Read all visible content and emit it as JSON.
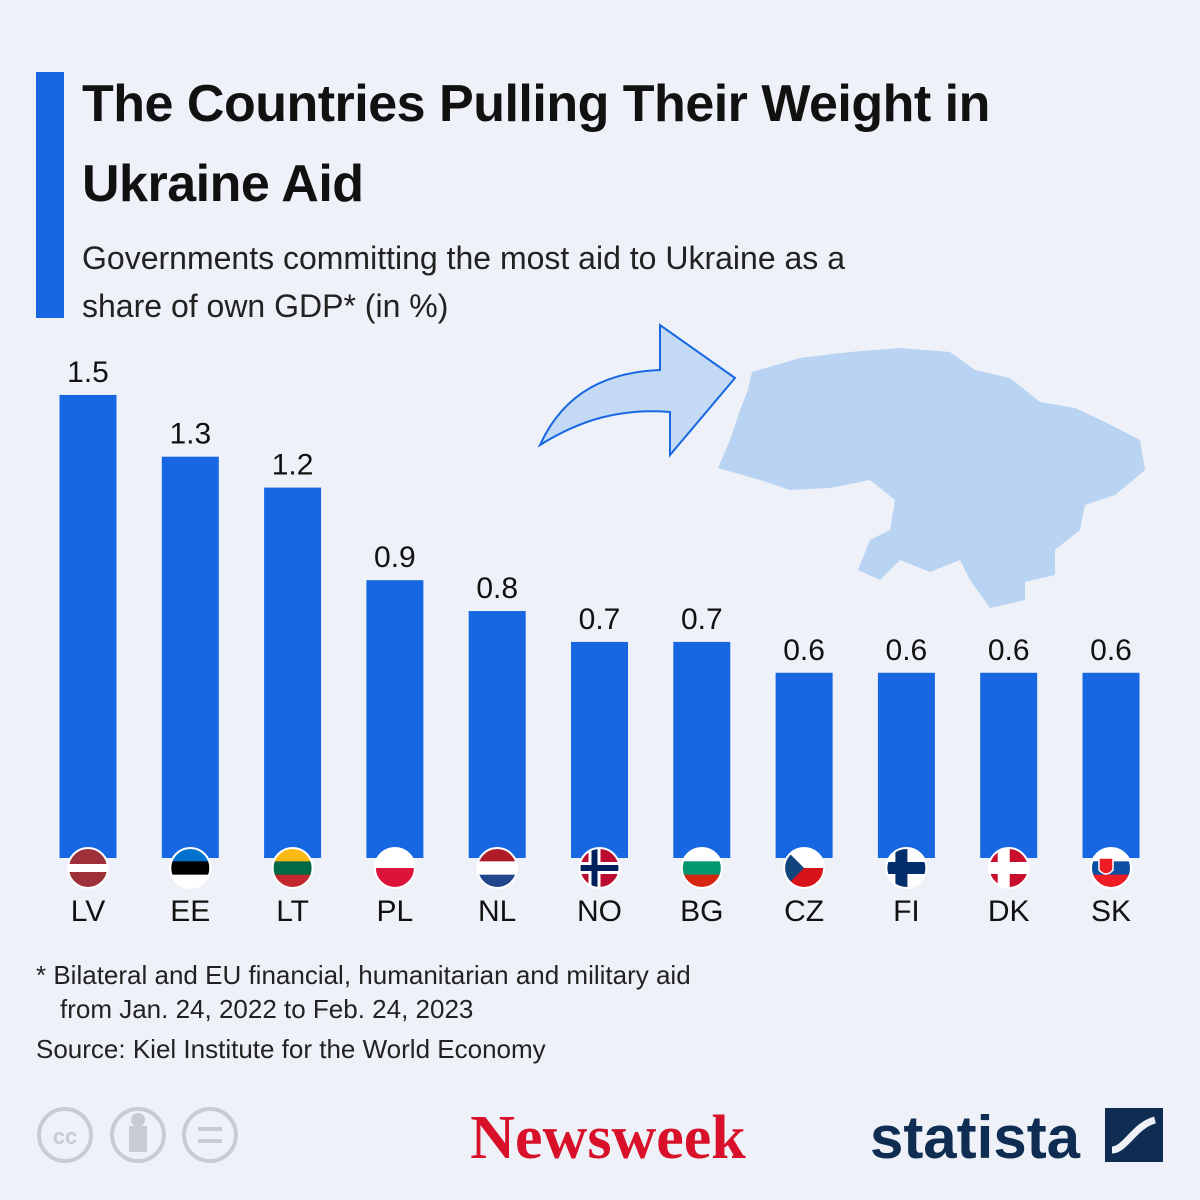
{
  "chart_data": {
    "type": "bar",
    "title": "The Countries Pulling Their Weight in Ukraine Aid",
    "subtitle": "Governments committing the most aid to Ukraine as a share of own GDP* (in %)",
    "categories": [
      "LV",
      "EE",
      "LT",
      "PL",
      "NL",
      "NO",
      "BG",
      "CZ",
      "FI",
      "DK",
      "SK"
    ],
    "values": [
      1.5,
      1.3,
      1.2,
      0.9,
      0.8,
      0.7,
      0.7,
      0.6,
      0.6,
      0.6,
      0.6
    ],
    "color": "#1767e3",
    "note": [
      "* Bilateral and EU financial, humanitarian and military aid",
      "from Jan. 24, 2022 to Feb. 24, 2023"
    ],
    "source": "Source: Kiel Institute for the World Economy",
    "publisher": "Newsweek",
    "brand": "statista"
  }
}
